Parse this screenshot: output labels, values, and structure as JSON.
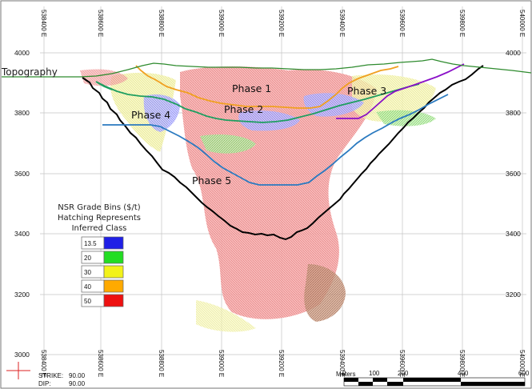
{
  "section": {
    "easting_ticks": [
      "538400 E",
      "538600 E",
      "538800 E",
      "539000 E",
      "539200 E",
      "539400 E",
      "539600 E",
      "539800 E",
      "540000 E"
    ],
    "elevation_ticks": [
      "4000",
      "3800",
      "3600",
      "3400",
      "3200",
      "3000"
    ],
    "topography_label": "Topography",
    "phase_labels": [
      "Phase 1",
      "Phase 2",
      "Phase 3",
      "Phase 4",
      "Phase 5"
    ]
  },
  "legend": {
    "title_lines": [
      "NSR Grade Bins ($/t)",
      "Hatching Represents",
      "Inferred Class"
    ],
    "bins": [
      {
        "value": "13.5",
        "color": "#1f1fe6"
      },
      {
        "value": "20",
        "color": "#22dd22"
      },
      {
        "value": "30",
        "color": "#f2f21a"
      },
      {
        "value": "40",
        "color": "#ffaa00"
      },
      {
        "value": "50",
        "color": "#ee1111"
      }
    ]
  },
  "orientation": {
    "strike_label": "STRIKE:",
    "strike_value": "90.00",
    "dip_label": "DIP:",
    "dip_value": "90.00"
  },
  "scale_bar": {
    "title": "Meters",
    "labels": [
      "0",
      "100",
      "200",
      "400",
      "600"
    ]
  },
  "colors": {
    "topography": "#2e8b2e",
    "ultimate_pit": "#000000",
    "phase1": "#f0a020",
    "phase2": "#1e9e60",
    "phase3": "#8a10c8",
    "phase4": "#1e9e60",
    "phase5": "#2a7ac0",
    "grid": "#bbbbbb"
  }
}
